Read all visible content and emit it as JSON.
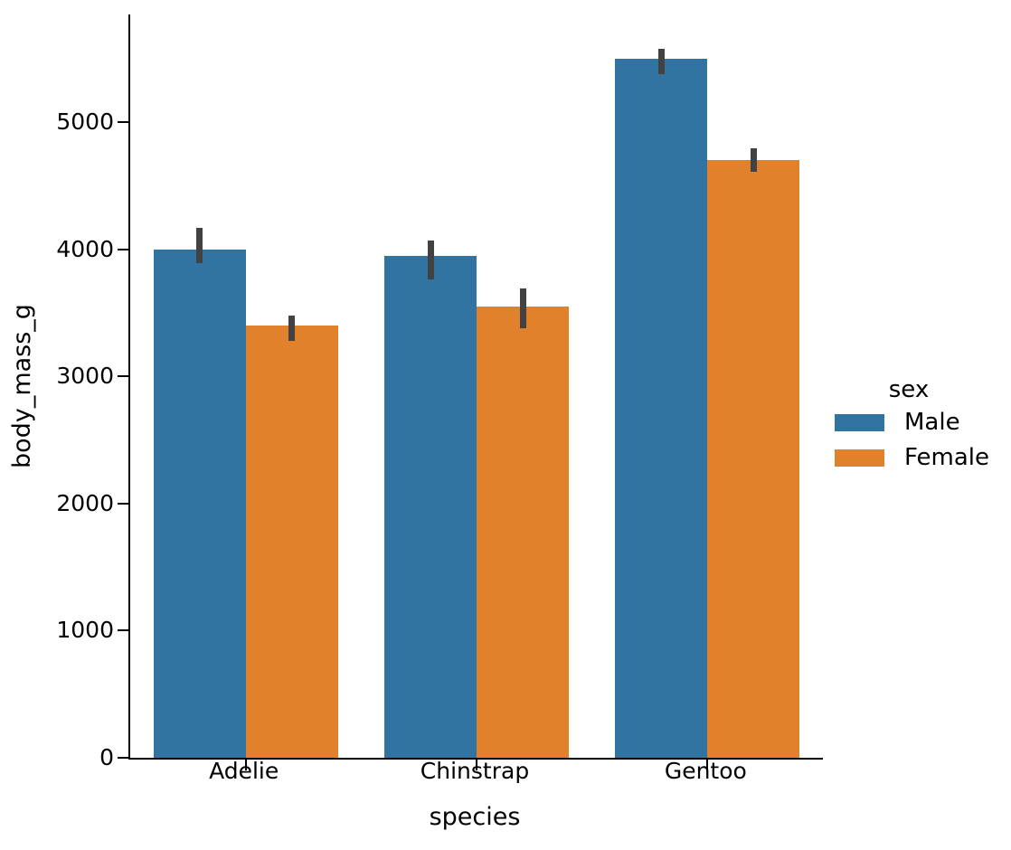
{
  "figure": {
    "background": "#ffffff",
    "text_color": "#000000"
  },
  "chart_data": {
    "type": "bar",
    "title": "",
    "xlabel": "species",
    "ylabel": "body_mass_g",
    "categories": [
      "Adelie",
      "Chinstrap",
      "Gentoo"
    ],
    "series": [
      {
        "name": "Male",
        "color": "#3274a1",
        "values": [
          4000,
          3950,
          5500
        ],
        "ci_low": [
          3890,
          3760,
          5375
        ],
        "ci_high": [
          4170,
          4070,
          5575
        ]
      },
      {
        "name": "Female",
        "color": "#e1812c",
        "values": [
          3400,
          3550,
          4700
        ],
        "ci_low": [
          3280,
          3380,
          4610
        ],
        "ci_high": [
          3475,
          3690,
          4795
        ]
      }
    ],
    "yticks": [
      0,
      1000,
      2000,
      3000,
      4000,
      5000
    ],
    "ylim": [
      0,
      5845
    ],
    "grid": false,
    "error_bar_color": "#424242",
    "legend": {
      "title": "sex",
      "position": "center-right",
      "entries": [
        "Male",
        "Female"
      ]
    }
  }
}
